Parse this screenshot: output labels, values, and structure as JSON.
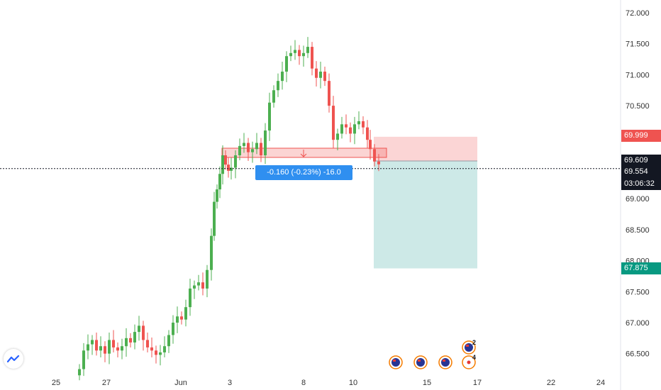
{
  "chart_data": {
    "type": "candlestick",
    "y_ticks": [
      "72.000",
      "71.500",
      "71.000",
      "70.500",
      "69.000",
      "68.500",
      "68.000",
      "67.500",
      "67.000",
      "66.500"
    ],
    "x_ticks": [
      "25",
      "27",
      "Jun",
      "3",
      "8",
      "10",
      "15",
      "17",
      "22",
      "24"
    ],
    "ylim": [
      66.2,
      72.15
    ],
    "price_labels": {
      "stop": "69.999",
      "entry": "69.609",
      "last": "69.554",
      "countdown": "03:06:32",
      "target": "67.875"
    },
    "stop_price": 69.999,
    "entry_price": 69.609,
    "last_price": 69.554,
    "target_price": 67.875,
    "measure_text": "-0.160 (-0.23%) -16.0",
    "events": [
      {
        "count": ""
      },
      {
        "count": ""
      },
      {
        "count": ""
      },
      {
        "count": "2"
      },
      {
        "count": "4"
      }
    ]
  },
  "colors": {
    "up": "#26a69a",
    "up_body": "#4caf50",
    "down": "#ef5350",
    "stop_zone": "#fbd5d5",
    "target_zone": "#cde9e7",
    "stop_label": "#ef5350",
    "target_label": "#089981",
    "dark_label": "#131722",
    "pill": "#2f8ff0"
  }
}
